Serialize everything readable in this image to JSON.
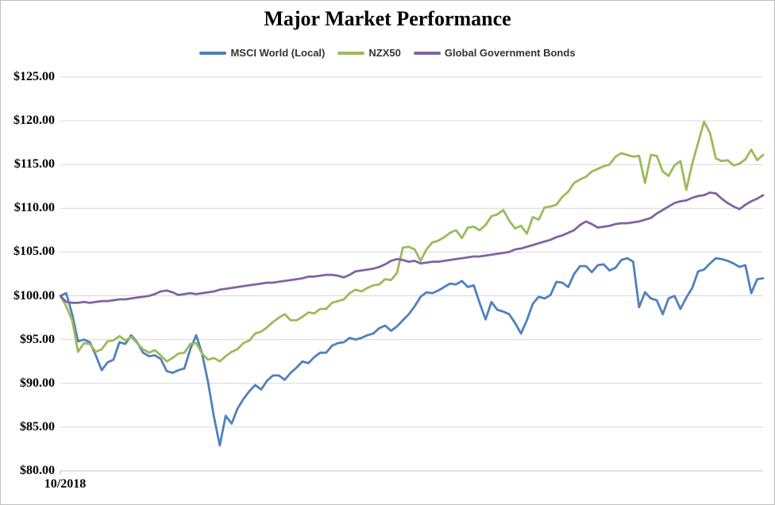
{
  "window": {
    "background": "#ffffff",
    "border_color": "#bfbfbf"
  },
  "chart_data": {
    "type": "line",
    "title": "Major Market Performance",
    "grid": {
      "horizontal": true,
      "vertical": false,
      "color": "#d9d9d9",
      "axis_color": "#bfbfbf"
    },
    "legend": {
      "position": "top"
    },
    "x_axis": {
      "tick_labels": [
        "10/2018"
      ]
    },
    "y_axis": {
      "min": 80,
      "max": 125,
      "step": 5,
      "ticks": [
        {
          "value": 125,
          "label": "$125.00"
        },
        {
          "value": 120,
          "label": "$120.00"
        },
        {
          "value": 115,
          "label": "$115.00"
        },
        {
          "value": 110,
          "label": "$110.00"
        },
        {
          "value": 105,
          "label": "$105.00"
        },
        {
          "value": 100,
          "label": "$100.00"
        },
        {
          "value": 95,
          "label": "$95.00"
        },
        {
          "value": 90,
          "label": "$90.00"
        },
        {
          "value": 85,
          "label": "$85.00"
        },
        {
          "value": 80,
          "label": "$80.00"
        }
      ]
    },
    "series": [
      {
        "name": "MSCI World (Local)",
        "color": "#4F81BD",
        "values": [
          100.0,
          100.3,
          97.9,
          94.8,
          95.0,
          94.7,
          93.2,
          91.5,
          92.4,
          92.7,
          94.7,
          94.5,
          95.5,
          94.7,
          93.5,
          93.1,
          93.2,
          92.8,
          91.4,
          91.2,
          91.5,
          91.7,
          93.9,
          95.5,
          93.4,
          90.2,
          86.2,
          82.9,
          86.3,
          85.4,
          87.1,
          88.2,
          89.1,
          89.8,
          89.3,
          90.3,
          90.9,
          90.9,
          90.4,
          91.2,
          91.8,
          92.5,
          92.3,
          93.0,
          93.5,
          93.5,
          94.3,
          94.6,
          94.7,
          95.2,
          95.0,
          95.2,
          95.5,
          95.7,
          96.3,
          96.6,
          96.0,
          96.5,
          97.2,
          97.9,
          98.8,
          99.9,
          100.4,
          100.3,
          100.6,
          101.0,
          101.4,
          101.3,
          101.7,
          101.0,
          101.2,
          99.2,
          97.3,
          99.3,
          98.4,
          98.2,
          97.9,
          96.9,
          95.7,
          97.2,
          99.1,
          99.9,
          99.7,
          100.1,
          101.6,
          101.5,
          101.0,
          102.5,
          103.4,
          103.4,
          102.7,
          103.5,
          103.6,
          102.9,
          103.2,
          104.1,
          104.3,
          103.9,
          98.7,
          100.4,
          99.7,
          99.5,
          97.9,
          99.7,
          100.0,
          98.5,
          99.8,
          100.9,
          102.8,
          103.0,
          103.7,
          104.3,
          104.2,
          104.0,
          103.7,
          103.3,
          103.5,
          100.3,
          101.9,
          102.0
        ]
      },
      {
        "name": "NZX50",
        "color": "#9BBB59",
        "values": [
          100.0,
          98.8,
          97.2,
          93.6,
          94.6,
          94.5,
          93.6,
          93.9,
          94.8,
          94.9,
          95.4,
          94.9,
          95.3,
          94.6,
          93.9,
          93.5,
          93.8,
          93.2,
          92.5,
          92.9,
          93.4,
          93.5,
          94.5,
          94.6,
          93.4,
          92.7,
          92.9,
          92.5,
          93.1,
          93.6,
          93.9,
          94.6,
          94.9,
          95.7,
          95.9,
          96.4,
          97.0,
          97.5,
          97.9,
          97.2,
          97.2,
          97.6,
          98.1,
          98.0,
          98.5,
          98.5,
          99.2,
          99.4,
          99.6,
          100.3,
          100.7,
          100.5,
          100.9,
          101.2,
          101.3,
          101.9,
          101.8,
          102.6,
          105.5,
          105.6,
          105.3,
          104.0,
          105.3,
          106.1,
          106.3,
          106.7,
          107.2,
          107.5,
          106.6,
          107.8,
          107.9,
          107.5,
          108.1,
          109.1,
          109.3,
          109.8,
          108.6,
          107.7,
          108.0,
          107.1,
          109.0,
          108.7,
          110.1,
          110.2,
          110.4,
          111.3,
          111.9,
          112.9,
          113.3,
          113.6,
          114.2,
          114.5,
          114.8,
          115.0,
          115.9,
          116.3,
          116.1,
          115.9,
          116.0,
          112.9,
          116.1,
          116.0,
          114.2,
          113.7,
          114.9,
          115.4,
          112.1,
          115.1,
          117.5,
          119.9,
          118.6,
          115.7,
          115.4,
          115.5,
          114.9,
          115.1,
          115.6,
          116.7,
          115.5,
          116.1
        ]
      },
      {
        "name": "Global Government Bonds",
        "color": "#8064A2",
        "values": [
          100.0,
          99.3,
          99.2,
          99.2,
          99.3,
          99.2,
          99.3,
          99.4,
          99.4,
          99.5,
          99.6,
          99.6,
          99.7,
          99.8,
          99.9,
          100.0,
          100.2,
          100.5,
          100.6,
          100.4,
          100.1,
          100.2,
          100.3,
          100.2,
          100.3,
          100.4,
          100.5,
          100.7,
          100.8,
          100.9,
          101.0,
          101.1,
          101.2,
          101.3,
          101.4,
          101.5,
          101.5,
          101.6,
          101.7,
          101.8,
          101.9,
          102.0,
          102.2,
          102.2,
          102.3,
          102.4,
          102.4,
          102.3,
          102.1,
          102.4,
          102.8,
          102.9,
          103.0,
          103.1,
          103.3,
          103.6,
          104.0,
          104.2,
          104.1,
          103.9,
          104.0,
          103.7,
          103.8,
          103.9,
          103.9,
          104.0,
          104.1,
          104.2,
          104.3,
          104.4,
          104.5,
          104.5,
          104.6,
          104.7,
          104.8,
          104.9,
          105.0,
          105.3,
          105.4,
          105.6,
          105.8,
          106.0,
          106.2,
          106.4,
          106.7,
          106.9,
          107.2,
          107.5,
          108.1,
          108.5,
          108.2,
          107.8,
          107.9,
          108.0,
          108.2,
          108.3,
          108.3,
          108.4,
          108.5,
          108.7,
          108.9,
          109.4,
          109.8,
          110.2,
          110.6,
          110.8,
          110.9,
          111.2,
          111.4,
          111.5,
          111.8,
          111.7,
          111.1,
          110.6,
          110.2,
          109.9,
          110.4,
          110.8,
          111.1,
          111.5
        ]
      }
    ]
  }
}
